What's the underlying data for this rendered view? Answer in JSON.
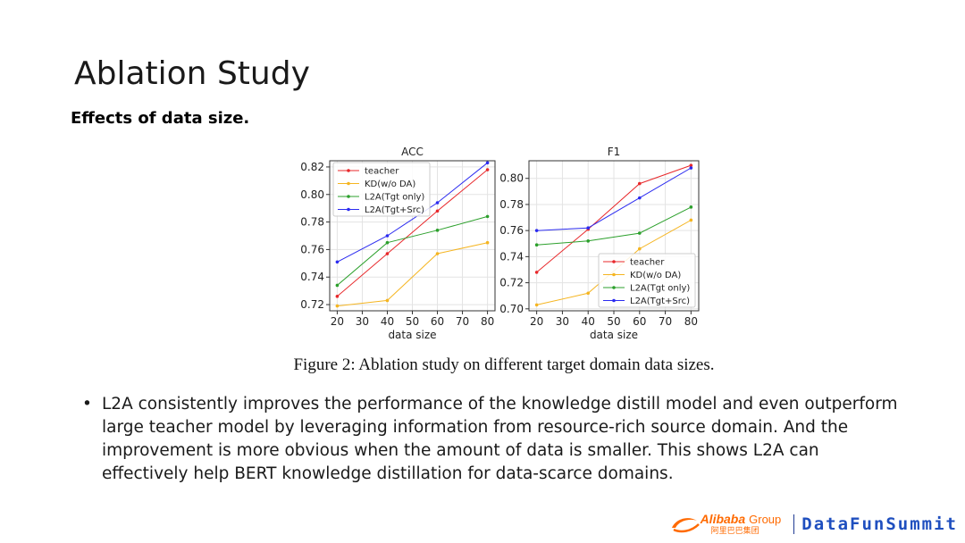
{
  "slide": {
    "title": "Ablation Study",
    "subtitle": "Effects of data size.",
    "caption": "Figure 2: Ablation study on different target domain data sizes.",
    "bullet": "L2A consistently improves the performance of the knowledge distill model and even outperform large teacher model by leveraging information from resource-rich source domain. And the improvement is more obvious when the amount of data is smaller. This shows L2A can effectively help BERT knowledge distillation for data-scarce domains.",
    "bullet_marker": "•"
  },
  "footer": {
    "alibaba_name": "Alibaba",
    "alibaba_group": "Group",
    "alibaba_cn": "阿里巴巴集团",
    "datafun": "DataFunSummit",
    "colors": {
      "alibaba": "#ff6a00",
      "datafun": "#1f4fbf"
    }
  },
  "chart_data": [
    {
      "type": "line",
      "title": "ACC",
      "xlabel": "data size",
      "ylabel": "",
      "x": [
        20,
        40,
        60,
        80
      ],
      "xticks": [
        20,
        30,
        40,
        50,
        60,
        70,
        80
      ],
      "yticks": [
        0.72,
        0.74,
        0.76,
        0.78,
        0.8,
        0.82
      ],
      "ytick_labels": [
        "0.72",
        "0.74",
        "0.76",
        "0.78",
        "0.80",
        "0.82"
      ],
      "xlim": [
        17,
        83
      ],
      "ylim": [
        0.7155,
        0.8245
      ],
      "grid": true,
      "legend": "top-left",
      "series": [
        {
          "name": "teacher",
          "color": "#e8282b",
          "values": [
            0.726,
            0.757,
            0.788,
            0.818
          ]
        },
        {
          "name": "KD(w/o DA)",
          "color": "#f5b521",
          "values": [
            0.719,
            0.723,
            0.757,
            0.765
          ]
        },
        {
          "name": "L2A(Tgt only)",
          "color": "#2ca02c",
          "values": [
            0.734,
            0.765,
            0.774,
            0.784
          ]
        },
        {
          "name": "L2A(Tgt+Src)",
          "color": "#2b2bf0",
          "values": [
            0.751,
            0.77,
            0.794,
            0.823
          ]
        }
      ]
    },
    {
      "type": "line",
      "title": "F1",
      "xlabel": "data size",
      "ylabel": "",
      "x": [
        20,
        40,
        60,
        80
      ],
      "xticks": [
        20,
        30,
        40,
        50,
        60,
        70,
        80
      ],
      "yticks": [
        0.7,
        0.72,
        0.74,
        0.76,
        0.78,
        0.8
      ],
      "ytick_labels": [
        "0.70",
        "0.72",
        "0.74",
        "0.76",
        "0.78",
        "0.80"
      ],
      "xlim": [
        17,
        83
      ],
      "ylim": [
        0.6985,
        0.8135
      ],
      "grid": true,
      "legend": "lower-right",
      "series": [
        {
          "name": "teacher",
          "color": "#e8282b",
          "values": [
            0.728,
            0.761,
            0.796,
            0.81
          ]
        },
        {
          "name": "KD(w/o DA)",
          "color": "#f5b521",
          "values": [
            0.703,
            0.712,
            0.746,
            0.768
          ]
        },
        {
          "name": "L2A(Tgt only)",
          "color": "#2ca02c",
          "values": [
            0.749,
            0.752,
            0.758,
            0.778
          ]
        },
        {
          "name": "L2A(Tgt+Src)",
          "color": "#2b2bf0",
          "values": [
            0.76,
            0.762,
            0.785,
            0.808
          ]
        }
      ]
    }
  ]
}
